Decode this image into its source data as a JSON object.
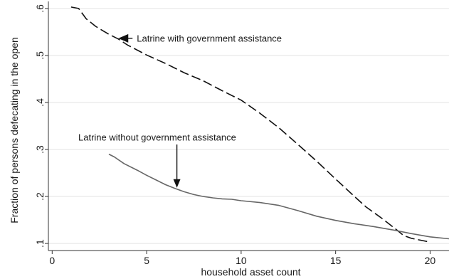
{
  "chart_data": {
    "type": "line",
    "title": "",
    "xlabel": "household asset count",
    "ylabel": "Fraction of persons defecating in the open",
    "xlim": [
      -0.2,
      21
    ],
    "ylim": [
      0.085,
      0.615
    ],
    "grid": true,
    "x_ticks": [
      0,
      5,
      10,
      15,
      20
    ],
    "x_tick_labels": [
      "0",
      "5",
      "10",
      "15",
      "20"
    ],
    "y_ticks": [
      0.1,
      0.2,
      0.3,
      0.4,
      0.5,
      0.6
    ],
    "y_tick_labels": [
      ".1",
      ".2",
      ".3",
      ".4",
      ".5",
      ".6"
    ],
    "colors": {
      "with_assistance": "#111111",
      "without_assistance": "#666666",
      "grid": "#e3e3e3"
    },
    "series": [
      {
        "name": "Latrine with government assistance",
        "style": "dashed",
        "x": [
          1.0,
          1.4,
          1.8,
          2.3,
          3.0,
          3.5,
          4.0,
          5.0,
          6.0,
          7.0,
          8.0,
          9.0,
          10.0,
          11.0,
          12.0,
          13.0,
          14.0,
          15.0,
          16.0,
          16.6,
          17.5,
          18.2,
          18.6,
          19.0,
          19.5,
          20.0
        ],
        "y": [
          0.603,
          0.6,
          0.578,
          0.562,
          0.545,
          0.535,
          0.522,
          0.501,
          0.483,
          0.463,
          0.446,
          0.425,
          0.405,
          0.377,
          0.346,
          0.311,
          0.275,
          0.237,
          0.2,
          0.178,
          0.152,
          0.13,
          0.117,
          0.111,
          0.107,
          0.103
        ]
      },
      {
        "name": "Latrine without government assistance",
        "style": "solid",
        "x": [
          3.0,
          3.3,
          3.8,
          4.5,
          5.0,
          5.5,
          6.0,
          6.5,
          7.0,
          7.5,
          8.0,
          8.5,
          9.0,
          9.5,
          10.0,
          11.0,
          12.0,
          13.0,
          14.0,
          15.0,
          16.0,
          17.0,
          18.0,
          19.0,
          20.0,
          21.0
        ],
        "y": [
          0.29,
          0.284,
          0.27,
          0.256,
          0.245,
          0.235,
          0.225,
          0.217,
          0.21,
          0.204,
          0.2,
          0.197,
          0.195,
          0.194,
          0.191,
          0.187,
          0.181,
          0.17,
          0.158,
          0.149,
          0.142,
          0.136,
          0.129,
          0.121,
          0.114,
          0.11
        ]
      }
    ],
    "annotations": [
      {
        "text": "Latrine with government assistance",
        "series": 0,
        "x": 3.5
      },
      {
        "text": "Latrine without government assistance",
        "series": 1,
        "x": 6.6
      }
    ]
  }
}
